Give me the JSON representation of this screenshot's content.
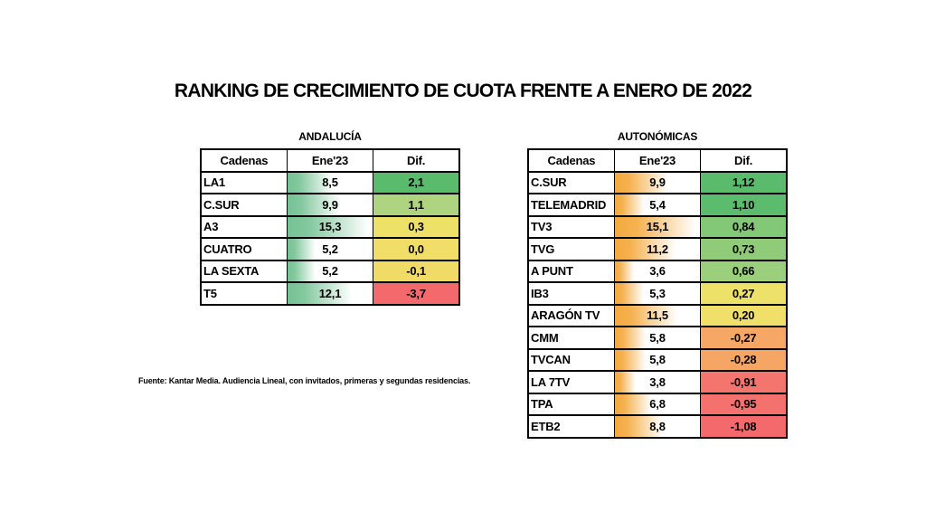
{
  "title": "RANKING DE CRECIMIENTO DE CUOTA FRENTE A ENERO DE 2022",
  "source_note": "Fuente: Kantar Media. Audiencia Lineal, con invitados, primeras y segundas residencias.",
  "tables": [
    {
      "caption": "ANDALUCÍA",
      "columns": [
        "Cadenas",
        "Ene'23",
        "Dif."
      ],
      "bar_color": "#76C294",
      "bar_max": 15.3,
      "rows": [
        {
          "cadena": "LA1",
          "ene23": "8,5",
          "ene23_value": 8.5,
          "dif": "2,1",
          "dif_color": "#5BBB6D"
        },
        {
          "cadena": "C.SUR",
          "ene23": "9,9",
          "ene23_value": 9.9,
          "dif": "1,1",
          "dif_color": "#AFD47F"
        },
        {
          "cadena": "A3",
          "ene23": "15,3",
          "ene23_value": 15.3,
          "dif": "0,3",
          "dif_color": "#EDE168"
        },
        {
          "cadena": "CUATRO",
          "ene23": "5,2",
          "ene23_value": 5.2,
          "dif": "0,0",
          "dif_color": "#F0DE68"
        },
        {
          "cadena": "LA SEXTA",
          "ene23": "5,2",
          "ene23_value": 5.2,
          "dif": "-0,1",
          "dif_color": "#F1DB67"
        },
        {
          "cadena": "T5",
          "ene23": "12,1",
          "ene23_value": 12.1,
          "dif": "-3,7",
          "dif_color": "#F4696B"
        }
      ]
    },
    {
      "caption": "AUTONÓMICAS",
      "columns": [
        "Cadenas",
        "Ene'23",
        "Dif."
      ],
      "bar_color": "#F4A93D",
      "bar_max": 15.1,
      "rows": [
        {
          "cadena": "C.SUR",
          "ene23": "9,9",
          "ene23_value": 9.9,
          "dif": "1,12",
          "dif_color": "#5ABB6C"
        },
        {
          "cadena": "TELEMADRID",
          "ene23": "5,4",
          "ene23_value": 5.4,
          "dif": "1,10",
          "dif_color": "#5CBC6E"
        },
        {
          "cadena": "TV3",
          "ene23": "15,1",
          "ene23_value": 15.1,
          "dif": "0,84",
          "dif_color": "#83C876"
        },
        {
          "cadena": "TVG",
          "ene23": "11,2",
          "ene23_value": 11.2,
          "dif": "0,73",
          "dif_color": "#8FCB78"
        },
        {
          "cadena": "A PUNT",
          "ene23": "3,6",
          "ene23_value": 3.6,
          "dif": "0,66",
          "dif_color": "#9CCF7B"
        },
        {
          "cadena": "IB3",
          "ene23": "5,3",
          "ene23_value": 5.3,
          "dif": "0,27",
          "dif_color": "#EEE169"
        },
        {
          "cadena": "ARAGÓN TV",
          "ene23": "11,5",
          "ene23_value": 11.5,
          "dif": "0,20",
          "dif_color": "#F0E069"
        },
        {
          "cadena": "CMM",
          "ene23": "5,8",
          "ene23_value": 5.8,
          "dif": "-0,27",
          "dif_color": "#F6A765"
        },
        {
          "cadena": "TVCAN",
          "ene23": "5,8",
          "ene23_value": 5.8,
          "dif": "-0,28",
          "dif_color": "#F6A664"
        },
        {
          "cadena": "LA 7TV",
          "ene23": "3,8",
          "ene23_value": 3.8,
          "dif": "-0,91",
          "dif_color": "#F4746E"
        },
        {
          "cadena": "TPA",
          "ene23": "6,8",
          "ene23_value": 6.8,
          "dif": "-0,95",
          "dif_color": "#F4716D"
        },
        {
          "cadena": "ETB2",
          "ene23": "8,8",
          "ene23_value": 8.8,
          "dif": "-1,08",
          "dif_color": "#F4696B"
        }
      ]
    }
  ],
  "chart_data": [
    {
      "type": "table",
      "title": "ANDALUCÍA",
      "columns": [
        "Cadenas",
        "Ene'23",
        "Dif."
      ],
      "rows": [
        [
          "LA1",
          8.5,
          2.1
        ],
        [
          "C.SUR",
          9.9,
          1.1
        ],
        [
          "A3",
          15.3,
          0.3
        ],
        [
          "CUATRO",
          5.2,
          0.0
        ],
        [
          "LA SEXTA",
          5.2,
          -0.1
        ],
        [
          "T5",
          12.1,
          -3.7
        ]
      ],
      "notes": "Ene'23 shown with green gradient data bars scaled to max 15.3; Dif. colored with red-yellow-green scale"
    },
    {
      "type": "table",
      "title": "AUTONÓMICAS",
      "columns": [
        "Cadenas",
        "Ene'23",
        "Dif."
      ],
      "rows": [
        [
          "C.SUR",
          9.9,
          1.12
        ],
        [
          "TELEMADRID",
          5.4,
          1.1
        ],
        [
          "TV3",
          15.1,
          0.84
        ],
        [
          "TVG",
          11.2,
          0.73
        ],
        [
          "A PUNT",
          3.6,
          0.66
        ],
        [
          "IB3",
          5.3,
          0.27
        ],
        [
          "ARAGÓN TV",
          11.5,
          0.2
        ],
        [
          "CMM",
          5.8,
          -0.27
        ],
        [
          "TVCAN",
          5.8,
          -0.28
        ],
        [
          "LA 7TV",
          3.8,
          -0.91
        ],
        [
          "TPA",
          6.8,
          -0.95
        ],
        [
          "ETB2",
          8.8,
          -1.08
        ]
      ],
      "notes": "Ene'23 shown with orange gradient data bars scaled to max 15.1; Dif. colored with red-yellow-green scale"
    }
  ]
}
